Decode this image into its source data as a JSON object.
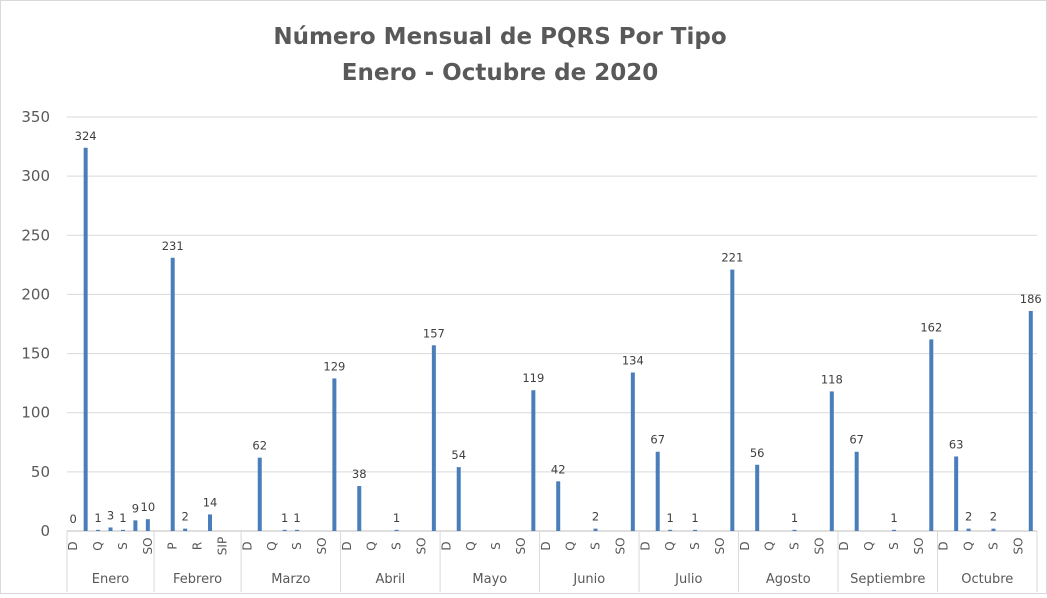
{
  "chart_data": {
    "type": "bar",
    "title": [
      "Número Mensual de PQRS Por Tipo",
      "Enero - Octubre de 2020"
    ],
    "color": "#4a7ebb",
    "ylim": [
      0,
      350
    ],
    "yticks": [
      0,
      50,
      100,
      150,
      200,
      250,
      300,
      350
    ],
    "grid": true,
    "groups": [
      {
        "name": "Enero",
        "categories": [
          "D",
          null,
          "Q",
          null,
          "S",
          null,
          "SO"
        ],
        "values": [
          0,
          324,
          1,
          3,
          1,
          9,
          10
        ]
      },
      {
        "name": "Febrero",
        "categories": [
          null,
          "P",
          null,
          "R",
          null,
          "SIP",
          null
        ],
        "values": [
          null,
          231,
          2,
          null,
          14,
          null,
          null
        ]
      },
      {
        "name": "Marzo",
        "categories": [
          "D",
          null,
          "Q",
          null,
          "S",
          null,
          "SO",
          null
        ],
        "values": [
          null,
          62,
          null,
          1,
          1,
          null,
          null,
          129
        ]
      },
      {
        "name": "Abril",
        "categories": [
          "D",
          null,
          "Q",
          null,
          "S",
          null,
          "SO",
          null
        ],
        "values": [
          null,
          38,
          null,
          null,
          1,
          null,
          null,
          157
        ]
      },
      {
        "name": "Mayo",
        "categories": [
          "D",
          null,
          "Q",
          null,
          "S",
          null,
          "SO",
          null
        ],
        "values": [
          null,
          54,
          null,
          null,
          null,
          null,
          null,
          119
        ]
      },
      {
        "name": "Junio",
        "categories": [
          "D",
          null,
          "Q",
          null,
          "S",
          null,
          "SO",
          null
        ],
        "values": [
          null,
          42,
          null,
          null,
          2,
          null,
          null,
          134
        ]
      },
      {
        "name": "Julio",
        "categories": [
          "D",
          null,
          "Q",
          null,
          "S",
          null,
          "SO",
          null
        ],
        "values": [
          null,
          67,
          1,
          null,
          1,
          null,
          null,
          221
        ]
      },
      {
        "name": "Agosto",
        "categories": [
          "D",
          null,
          "Q",
          null,
          "S",
          null,
          "SO",
          null
        ],
        "values": [
          null,
          56,
          null,
          null,
          1,
          null,
          null,
          118
        ]
      },
      {
        "name": "Septiembre",
        "categories": [
          "D",
          null,
          "Q",
          null,
          "S",
          null,
          "SO",
          null
        ],
        "values": [
          null,
          67,
          null,
          null,
          1,
          null,
          null,
          162
        ]
      },
      {
        "name": "Octubre",
        "categories": [
          "D",
          null,
          "Q",
          null,
          "S",
          null,
          "SO",
          null
        ],
        "values": [
          null,
          63,
          2,
          null,
          2,
          null,
          null,
          186
        ]
      }
    ]
  }
}
